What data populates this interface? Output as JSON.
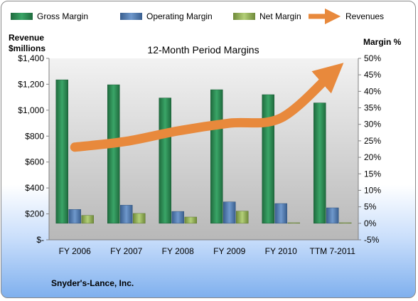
{
  "chart_data": {
    "type": "bar",
    "title": "12-Month Period Margins",
    "categories": [
      "FY 2006",
      "FY 2007",
      "FY 2008",
      "FY 2009",
      "FY 2010",
      "TTM 7-2011"
    ],
    "left_axis": {
      "label_line1": "Revenue",
      "label_line2": "$millions",
      "ylim": [
        0,
        1400
      ],
      "ticks": [
        "$-",
        "$200",
        "$400",
        "$600",
        "$800",
        "$1,000",
        "$1,200",
        "$1,400"
      ]
    },
    "right_axis": {
      "label": "Margin %",
      "ylim": [
        -5,
        50
      ],
      "ticks": [
        "-5%",
        "0%",
        "5%",
        "10%",
        "15%",
        "20%",
        "25%",
        "30%",
        "35%",
        "40%",
        "45%",
        "50%"
      ]
    },
    "series": [
      {
        "name": "Gross Margin",
        "axis": "right",
        "values": [
          43.5,
          42.0,
          38.0,
          40.5,
          39.0,
          36.5
        ],
        "color": "#2e8b57"
      },
      {
        "name": "Operating Margin",
        "axis": "right",
        "values": [
          4.2,
          5.5,
          3.6,
          6.5,
          6.0,
          4.7
        ],
        "color": "#4f81bd"
      },
      {
        "name": "Net Margin",
        "axis": "right",
        "values": [
          2.4,
          3.0,
          1.9,
          3.7,
          0.1,
          0.1
        ],
        "color": "#9bbb59"
      },
      {
        "name": "Revenues",
        "axis": "left",
        "type": "line",
        "values": [
          715,
          760,
          840,
          900,
          940,
          1290
        ],
        "color": "#e8893c"
      }
    ],
    "legend_position": "top",
    "grid": false,
    "plot_background": "#c8c8c8"
  },
  "footer": {
    "company": "Snyder's-Lance, Inc."
  }
}
